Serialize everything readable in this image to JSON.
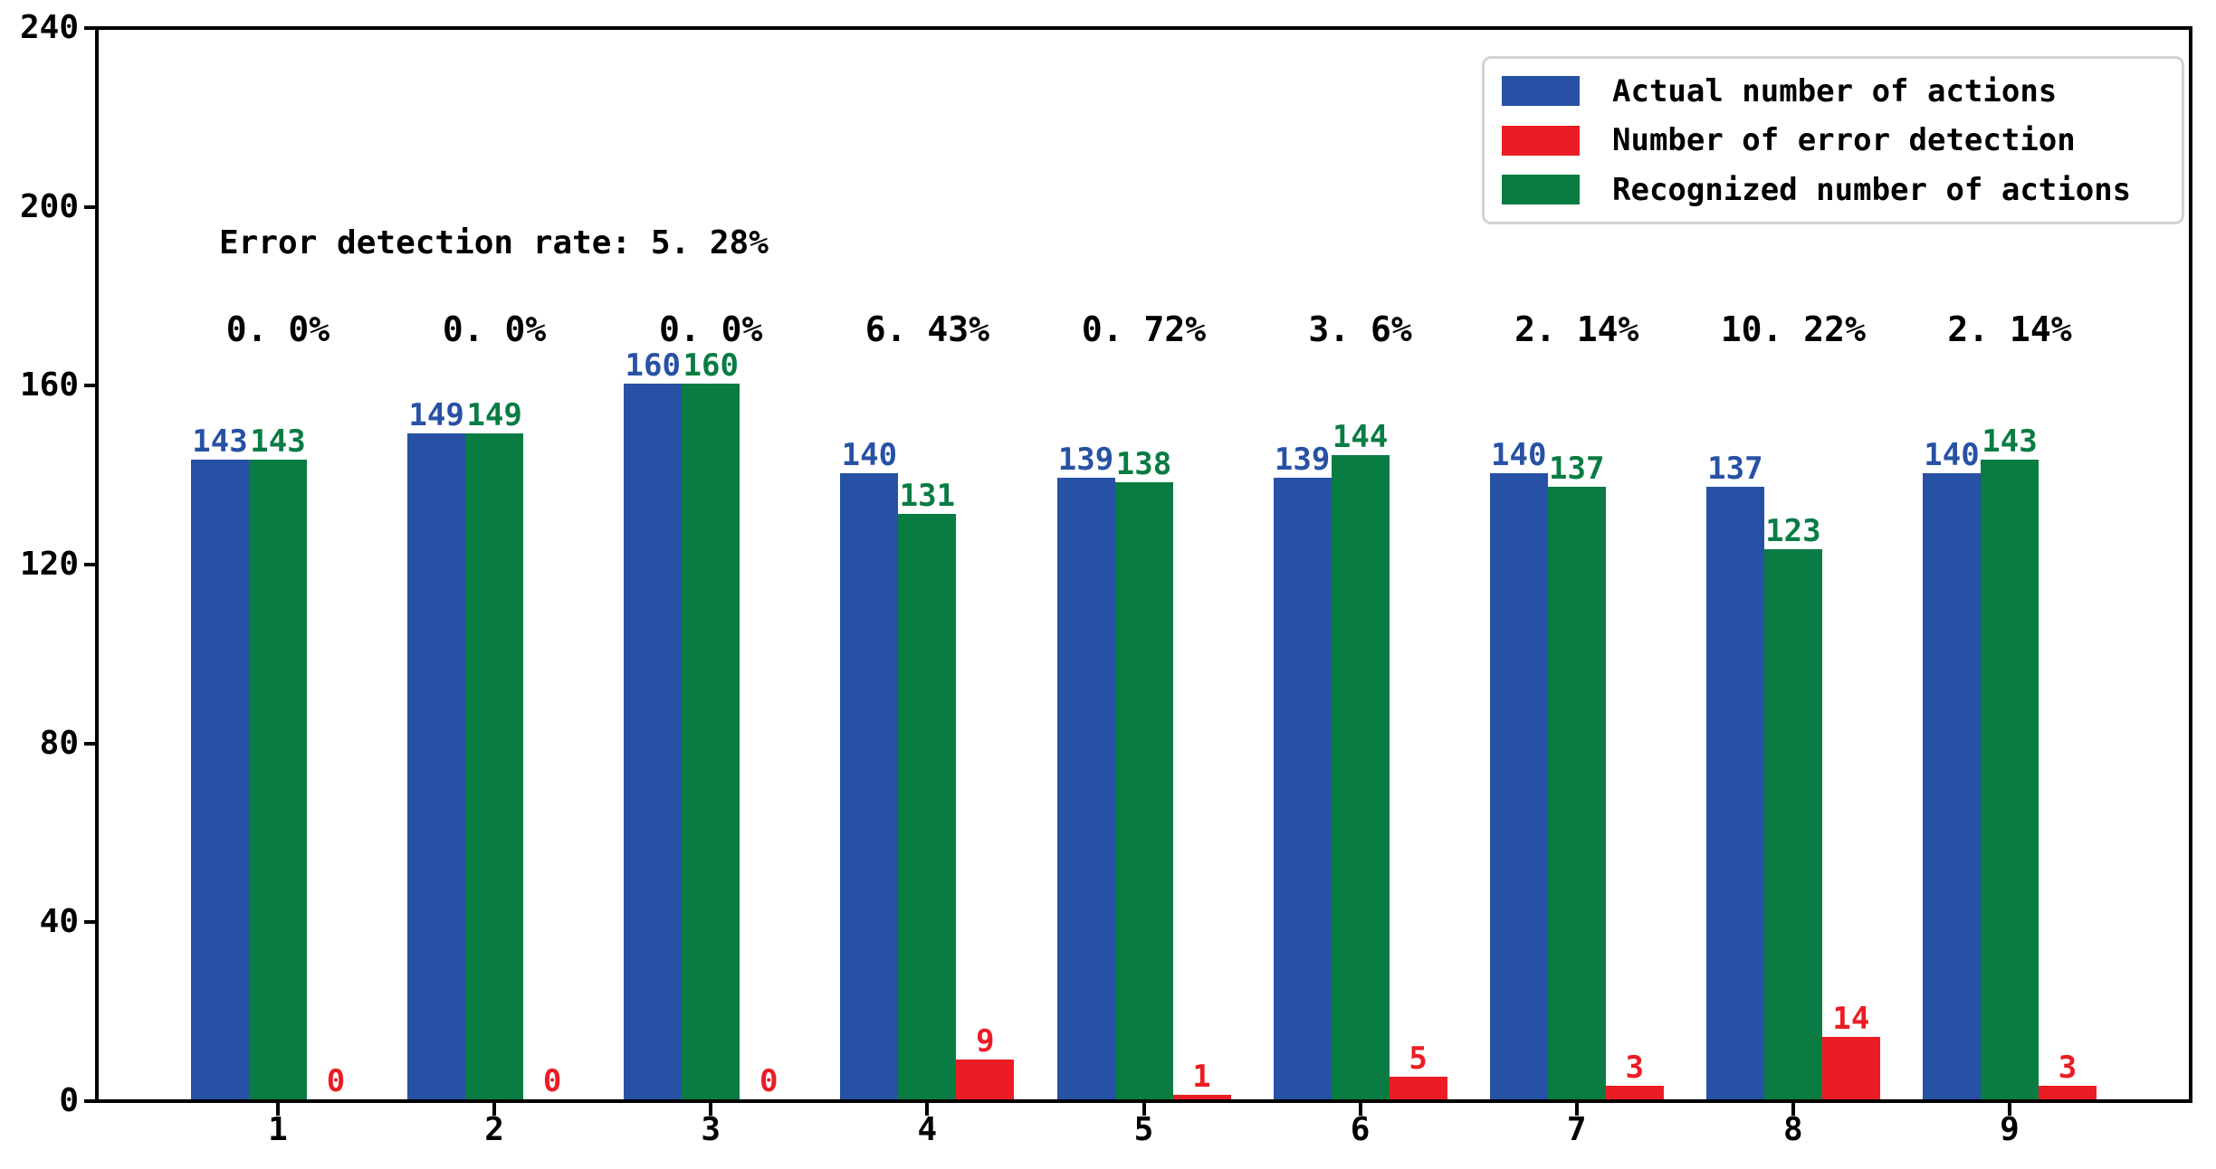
{
  "chart_data": {
    "type": "bar",
    "title": "",
    "xlabel": "",
    "ylabel": "",
    "categories": [
      "1",
      "2",
      "3",
      "4",
      "5",
      "6",
      "7",
      "8",
      "9"
    ],
    "series": [
      {
        "name": "Actual number of actions",
        "color": "#2751a4",
        "values": [
          143,
          149,
          160,
          140,
          139,
          139,
          140,
          137,
          140
        ]
      },
      {
        "name": "Number of error detection",
        "color": "#ec1c24",
        "values": [
          0,
          0,
          0,
          9,
          1,
          5,
          3,
          14,
          3
        ]
      },
      {
        "name": "Recognized number of actions",
        "color": "#087c43",
        "values": [
          143,
          149,
          160,
          131,
          138,
          144,
          137,
          123,
          143
        ]
      }
    ],
    "group_percent_labels": [
      "0. 0%",
      "0. 0%",
      "0. 0%",
      "6. 43%",
      "0. 72%",
      "3. 6%",
      "2. 14%",
      "10. 22%",
      "2. 14%"
    ],
    "annotation": "Error detection rate: 5. 28%",
    "y_ticks": [
      0,
      40,
      80,
      120,
      160,
      200,
      240
    ],
    "ylim": [
      0,
      240
    ],
    "grid": false,
    "bar_value_labels": true,
    "legend_position": "upper right"
  },
  "colors": {
    "axis": "#000000",
    "text": "#000000",
    "legend_border": "#d2d2d2",
    "background": "#ffffff"
  }
}
